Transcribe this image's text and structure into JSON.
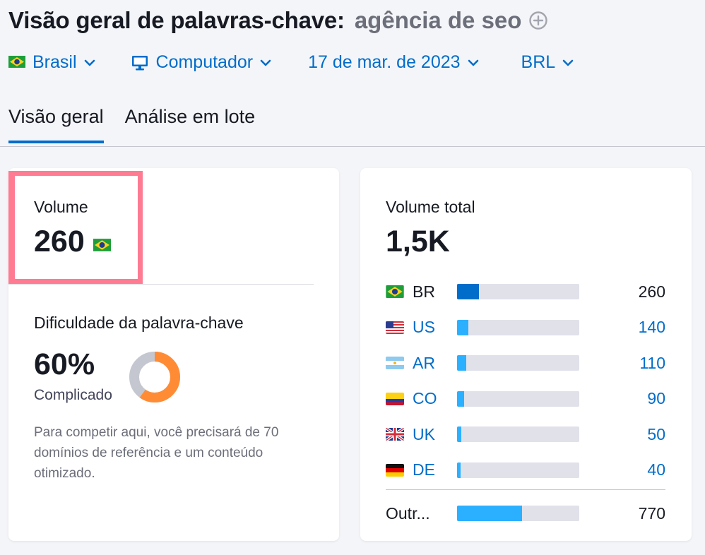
{
  "header": {
    "title": "Visão geral de palavras-chave:",
    "keyword": "agência de seo"
  },
  "filters": {
    "country": "Brasil",
    "device": "Computador",
    "date": "17 de mar. de 2023",
    "currency": "BRL"
  },
  "tabs": [
    {
      "label": "Visão geral",
      "active": true
    },
    {
      "label": "Análise em lote",
      "active": false
    }
  ],
  "volume": {
    "label": "Volume",
    "value": "260"
  },
  "keyword_difficulty": {
    "label": "Dificuldade da palavra-chave",
    "value": "60%",
    "level": "Complicado",
    "percent": 60,
    "description": "Para competir aqui, você precisará de 70 domínios de referência e um conteúdo otimizado."
  },
  "total_volume": {
    "label": "Volume total",
    "value": "1,5K",
    "rows": [
      {
        "code": "BR",
        "value": "260",
        "share": 0.18,
        "is_link": false,
        "color": "#006dca",
        "flag": "br"
      },
      {
        "code": "US",
        "value": "140",
        "share": 0.09,
        "is_link": true,
        "color": "#2bb0ff",
        "flag": "us"
      },
      {
        "code": "AR",
        "value": "110",
        "share": 0.075,
        "is_link": true,
        "color": "#2bb0ff",
        "flag": "ar"
      },
      {
        "code": "CO",
        "value": "90",
        "share": 0.06,
        "is_link": true,
        "color": "#2bb0ff",
        "flag": "co"
      },
      {
        "code": "UK",
        "value": "50",
        "share": 0.035,
        "is_link": true,
        "color": "#2bb0ff",
        "flag": "uk"
      },
      {
        "code": "DE",
        "value": "40",
        "share": 0.03,
        "is_link": true,
        "color": "#2bb0ff",
        "flag": "de"
      }
    ],
    "other": {
      "code": "Outr...",
      "value": "770",
      "share": 0.53,
      "color": "#2bb0ff"
    }
  },
  "colors": {
    "accent": "#006dca",
    "highlight": "#ff7b92",
    "difficulty": "#ff8c35",
    "difficulty_track": "#c4c7cf"
  }
}
